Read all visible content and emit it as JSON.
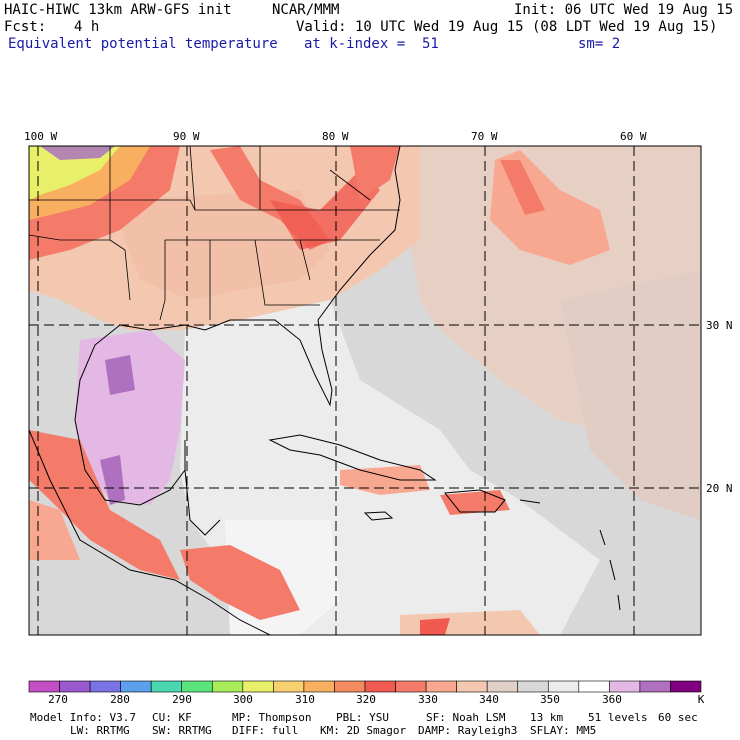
{
  "header": {
    "model": "HAIC-HIWC 13km ARW-GFS init",
    "org": "NCAR/MMM",
    "init": "Init: 06 UTC Wed 19 Aug 15",
    "fcst_label": "Fcst:",
    "fcst_value": "4 h",
    "valid": "Valid: 10 UTC Wed 19 Aug 15 (08 LDT Wed 19 Aug 15)",
    "field": "Equivalent potential temperature",
    "level": "at k-index =  51",
    "smoothing": "sm= 2"
  },
  "map": {
    "lon_labels": [
      "100 W",
      "90 W",
      "80 W",
      "70 W",
      "60 W"
    ],
    "lat_labels": [
      "30 N",
      "20 N"
    ]
  },
  "colorbar": {
    "labels": [
      "270",
      "280",
      "290",
      "300",
      "310",
      "320",
      "330",
      "340",
      "350",
      "360"
    ],
    "unit": "K",
    "colors": [
      "#c44fc4",
      "#9b59d0",
      "#7a73e6",
      "#5aa0ec",
      "#4ad8b0",
      "#5be47c",
      "#a8ec5a",
      "#e8f06a",
      "#f8d070",
      "#f8b060",
      "#f48a60",
      "#f05a50",
      "#f47a6a",
      "#f8a890",
      "#f4c8b0",
      "#e0d0c8",
      "#d8d8d8",
      "#ececec",
      "#ffffff",
      "#e4b8e4",
      "#b070c0",
      "#800080"
    ]
  },
  "footer": {
    "line1": [
      "Model Info: V3.7",
      "CU: KF",
      "MP: Thompson",
      "PBL: YSU",
      "SF: Noah LSM",
      "13 km",
      "51 levels",
      "60 sec"
    ],
    "line2": [
      "LW: RRTMG",
      "SW: RRTMG",
      "DIFF: full",
      "KM: 2D Smagor",
      "DAMP: Rayleigh3",
      "SFLAY: MM5"
    ]
  }
}
